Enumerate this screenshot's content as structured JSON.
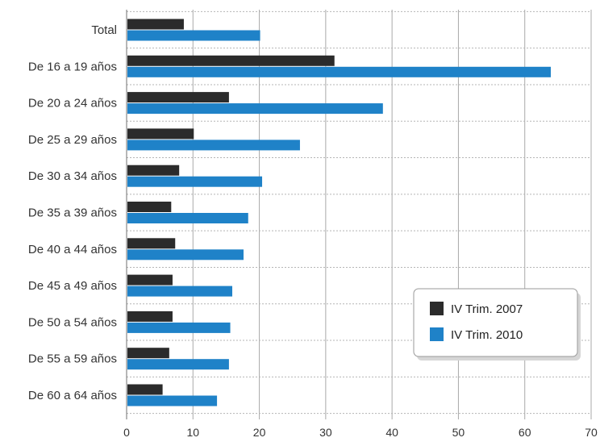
{
  "chart_data": {
    "type": "bar",
    "orientation": "horizontal",
    "categories": [
      "Total",
      "De 16 a 19 años",
      "De 20 a 24 años",
      "De 25 a 29 años",
      "De 30 a 34 años",
      "De 35 a 39 años",
      "De 40 a 44 años",
      "De 45 a 49 años",
      "De 50 a 54 años",
      "De 55 a 59 años",
      "De 60 a 64 años"
    ],
    "series": [
      {
        "name": "IV Trim. 2007",
        "color": "#2b2b2b",
        "values": [
          8.5,
          31.2,
          15.3,
          10.0,
          7.8,
          6.6,
          7.2,
          6.8,
          6.8,
          6.3,
          5.3
        ]
      },
      {
        "name": "IV Trim. 2010",
        "color": "#1f82c8",
        "values": [
          20.0,
          63.8,
          38.5,
          26.0,
          20.3,
          18.2,
          17.5,
          15.8,
          15.5,
          15.3,
          13.5
        ]
      }
    ],
    "xlim": [
      0,
      70
    ],
    "xticks": [
      0,
      10,
      20,
      30,
      40,
      50,
      60,
      70
    ],
    "title": "",
    "xlabel": "",
    "ylabel": "",
    "grid": true,
    "legend_position": "lower-right"
  }
}
